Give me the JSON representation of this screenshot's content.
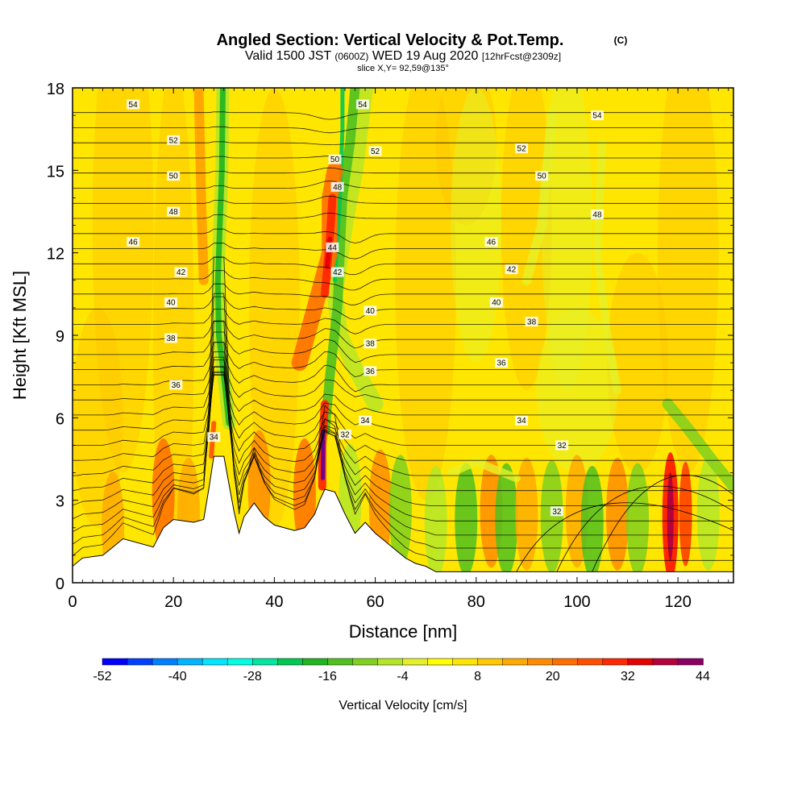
{
  "chart_data": {
    "type": "heatmap",
    "title": "Angled Section: Vertical Velocity & Pot.Temp.",
    "title_unit": "(C)",
    "subtitle_parts": [
      "Valid 1500 JST",
      "(0600Z)",
      "WED 19 Aug 2020",
      "[12hrFcst@2309z]"
    ],
    "slice_label": "slice X,Y= 92,59@135°",
    "xlabel": "Distance [nm]",
    "ylabel": "Height [Kft MSL]",
    "xlim": [
      0,
      131
    ],
    "ylim": [
      0,
      18
    ],
    "x_ticks": [
      0,
      20,
      40,
      60,
      80,
      100,
      120
    ],
    "y_ticks": [
      0,
      3,
      6,
      9,
      12,
      15,
      18
    ],
    "grid": false,
    "colorbar": {
      "label": "Vertical Velocity [cm/s]",
      "placement": "bottom",
      "range": [
        -52,
        44
      ],
      "step": 4,
      "tick_labels": [
        -52,
        -40,
        -28,
        -16,
        -4,
        8,
        20,
        32,
        44
      ],
      "colors": [
        "#0000ff",
        "#0040ff",
        "#0080ff",
        "#00b4ff",
        "#00e6ff",
        "#00ffe0",
        "#00e6a0",
        "#00c850",
        "#20b420",
        "#50c020",
        "#80d020",
        "#b4e628",
        "#e6f028",
        "#ffff00",
        "#ffe600",
        "#ffc800",
        "#ffaa00",
        "#ff8c00",
        "#ff6e00",
        "#ff5000",
        "#ff2800",
        "#e60000",
        "#b4003c",
        "#8c0064",
        "#640096"
      ]
    },
    "isentropes": {
      "variable": "Potential temperature (C)",
      "labeled_levels": [
        32,
        34,
        36,
        38,
        40,
        42,
        44,
        46,
        48,
        50,
        52,
        54
      ]
    },
    "features": [
      {
        "name": "updraft",
        "x": 50,
        "y_range": [
          3.5,
          6.5
        ],
        "peak_cms": 44
      },
      {
        "name": "updraft",
        "x": 52,
        "y_range": [
          9,
          14
        ],
        "peak_cms": 32
      },
      {
        "name": "downdraft",
        "x": 54,
        "y_range": [
          10,
          18
        ],
        "peak_cms": -16
      },
      {
        "name": "downdraft",
        "x": 30,
        "y_range": [
          6,
          18
        ],
        "peak_cms": -16
      },
      {
        "name": "updraft",
        "x": 118,
        "y_range": [
          0.5,
          4.5
        ],
        "peak_cms": 32
      }
    ],
    "terrain_profile": [
      [
        0,
        0.6
      ],
      [
        2,
        0.9
      ],
      [
        6,
        1.0
      ],
      [
        8,
        1.3
      ],
      [
        10,
        1.6
      ],
      [
        16,
        1.3
      ],
      [
        18,
        2.0
      ],
      [
        20,
        2.3
      ],
      [
        24,
        2.2
      ],
      [
        26,
        2.3
      ],
      [
        27,
        3.4
      ],
      [
        28,
        4.6
      ],
      [
        30,
        4.6
      ],
      [
        31,
        3.6
      ],
      [
        32,
        2.6
      ],
      [
        33,
        1.8
      ],
      [
        34,
        2.4
      ],
      [
        36,
        2.9
      ],
      [
        38,
        2.4
      ],
      [
        40,
        2.1
      ],
      [
        44,
        1.9
      ],
      [
        46,
        2.0
      ],
      [
        48,
        2.5
      ],
      [
        49,
        3.0
      ],
      [
        50,
        3.4
      ],
      [
        52,
        3.3
      ],
      [
        53,
        2.9
      ],
      [
        54,
        2.5
      ],
      [
        56,
        1.8
      ],
      [
        58,
        2.2
      ],
      [
        60,
        1.8
      ],
      [
        62,
        1.5
      ],
      [
        64,
        1.2
      ],
      [
        66,
        0.9
      ],
      [
        68,
        0.7
      ],
      [
        70,
        0.6
      ],
      [
        72,
        0.4
      ],
      [
        131,
        0.4
      ]
    ]
  }
}
